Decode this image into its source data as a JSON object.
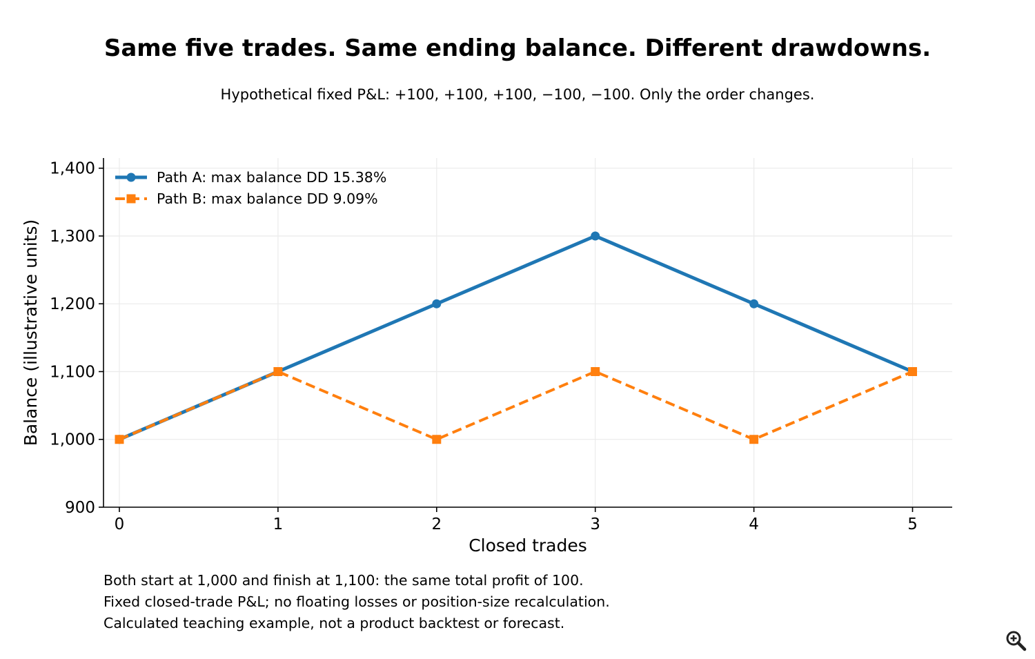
{
  "title": "Same five trades. Same ending balance. Different drawdowns.",
  "subtitle": "Hypothetical fixed P&L: +100, +100, +100, −100, −100. Only the order changes.",
  "notes": [
    "Both start at 1,000 and finish at 1,100: the same total profit of 100.",
    "Fixed closed-trade P&L; no floating losses or position-size recalculation.",
    "Calculated teaching example, not a product backtest or forecast."
  ],
  "zoom_icon": "zoom-in-icon",
  "chart_data": {
    "type": "line",
    "xlabel": "Closed trades",
    "ylabel": "Balance (illustrative units)",
    "x": [
      0,
      1,
      2,
      3,
      4,
      5
    ],
    "xlim": [
      -0.1,
      5.25
    ],
    "ylim": [
      900,
      1415
    ],
    "xticks": [
      "0",
      "1",
      "2",
      "3",
      "4",
      "5"
    ],
    "yticks": [
      {
        "value": 900,
        "label": "900"
      },
      {
        "value": 1000,
        "label": "1,000"
      },
      {
        "value": 1100,
        "label": "1,100"
      },
      {
        "value": 1200,
        "label": "1,200"
      },
      {
        "value": 1300,
        "label": "1,300"
      },
      {
        "value": 1400,
        "label": "1,400"
      }
    ],
    "grid": true,
    "legend_position": "top-left",
    "series": [
      {
        "name": "Path A: max balance DD 15.38%",
        "values": [
          1000,
          1100,
          1200,
          1300,
          1200,
          1100
        ],
        "color": "#1f77b4",
        "style": "solid",
        "marker": "circle"
      },
      {
        "name": "Path B: max balance DD 9.09%",
        "values": [
          1000,
          1100,
          1000,
          1100,
          1000,
          1100
        ],
        "color": "#ff7f0e",
        "style": "dashed",
        "marker": "square"
      }
    ]
  }
}
